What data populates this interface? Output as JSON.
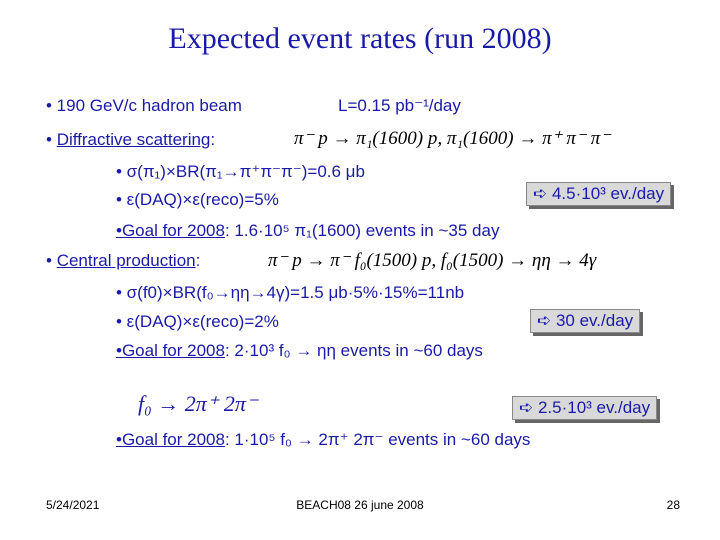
{
  "title": "Expected event rates (run 2008)",
  "beam": "• 190 GeV/c hadron beam",
  "lumi": "L=0.15 pb⁻¹/day",
  "diffractive": {
    "bullet": "•",
    "label": "Diffractive scattering",
    "colon": ":",
    "formula": "π⁻ p → π₁(1600) p, π₁(1600) → π⁺ π⁻ π⁻",
    "line1": "• σ(π₁)×BR(π₁→π⁺π⁻π⁻)=0.6 μb",
    "line2": "• ε(DAQ)×ε(reco)=5%",
    "rate": "➪ 4.5·10³ ev./day",
    "goal_label": "•Goal for 2008",
    "goal_text": ": 1.6·10⁵ π₁(1600) events in ~35 day"
  },
  "central": {
    "bullet": "•",
    "label": "Central production",
    "colon": ":",
    "formula": "π⁻ p → π⁻ f₀(1500) p, f₀(1500) → ηη → 4γ",
    "line1": "• σ(f0)×BR(f₀→ηη→4γ)=1.5 μb·5%·15%=11nb",
    "line2": "• ε(DAQ)×ε(reco)=2%",
    "rate": "➪ 30 ev./day",
    "goal_label": "•Goal for 2008",
    "goal_text": ": 2·10³ f₀ → ηη events in ~60 days"
  },
  "four_pi": {
    "formula": "f₀ → 2π⁺ 2π⁻",
    "rate": "➪ 2.5·10³ ev./day",
    "goal_label": "•Goal for 2008",
    "goal_text": ": 1·10⁵ f₀ → 2π⁺ 2π⁻ events in ~60 days"
  },
  "footer": {
    "date": "5/24/2021",
    "center": "BEACH08 26 june 2008",
    "page": "28"
  }
}
